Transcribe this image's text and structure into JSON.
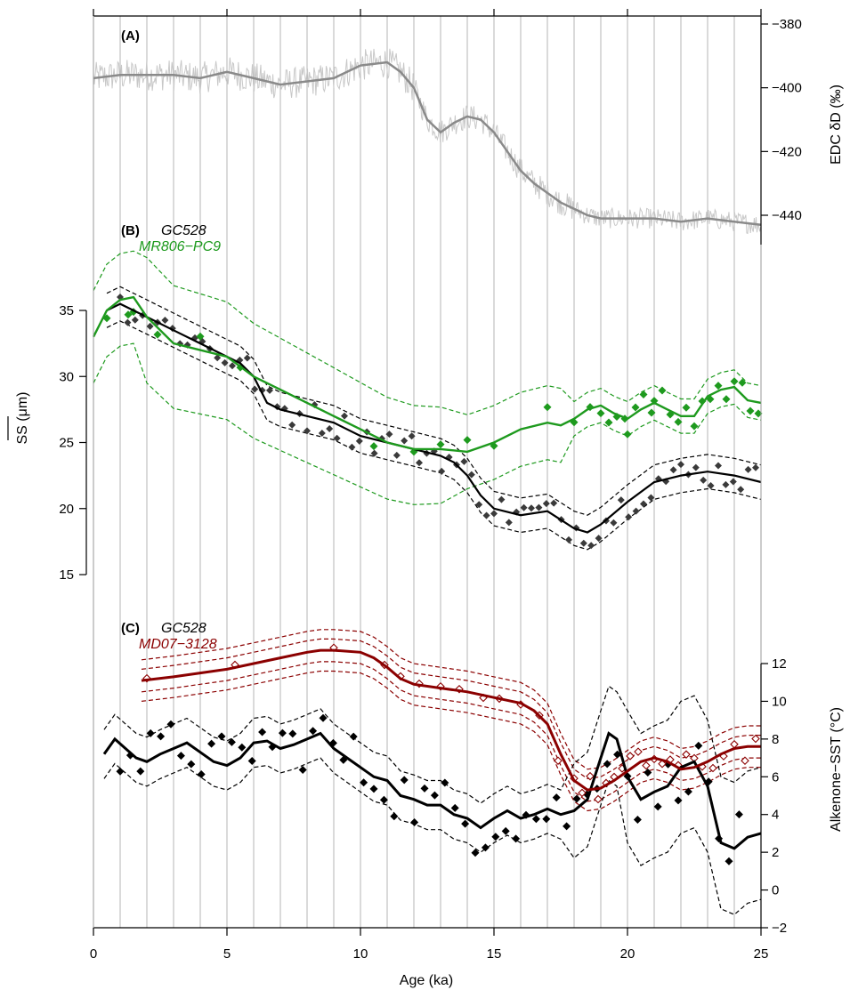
{
  "colors": {
    "panel_a_raw": "#c8c8c8",
    "panel_a_smooth": "#8a8a8a",
    "gc528": "#000000",
    "gc528_points_b": "#3a3a3a",
    "mr806": "#1e9a1e",
    "md07": "#8b0000",
    "grid": "#b4b4b4"
  },
  "labels": {
    "panel_a": "(A)",
    "panel_b": "(B)",
    "panel_c": "(C)",
    "b_series1": "GC528",
    "b_series2": "MR806−PC9",
    "c_series1": "GC528",
    "c_series2": "MD07−3128",
    "xlabel": "Age (ka)",
    "ylabel_a": "EDC δD (‰)",
    "ylabel_b": "SS (μm)",
    "ylabel_c": "Alkenone−SST (°C)"
  },
  "chart_data": [
    {
      "type": "line",
      "panel": "A",
      "ylabel": "EDC δD (‰)",
      "xlim": [
        0,
        25
      ],
      "ylim": [
        -448,
        -378
      ],
      "yticks": [
        -380,
        -400,
        -420,
        -440
      ],
      "ytick_labels": [
        "−380",
        "−400",
        "−420",
        "−440"
      ],
      "series": [
        {
          "role": "smoothed",
          "x": [
            0,
            1,
            2,
            3,
            4,
            5,
            6,
            7,
            8,
            9,
            10,
            11,
            11.5,
            12,
            12.5,
            13,
            13.5,
            14,
            14.5,
            15,
            15.5,
            16,
            16.5,
            17,
            17.5,
            18,
            18.5,
            19,
            19.5,
            20,
            21,
            22,
            23,
            24,
            25
          ],
          "y": [
            -397,
            -396,
            -396,
            -396,
            -397,
            -395,
            -397,
            -399,
            -398,
            -397,
            -393,
            -392,
            -395,
            -400,
            -410,
            -414,
            -411,
            -409,
            -410,
            -414,
            -420,
            -426,
            -430,
            -433,
            -436,
            -438,
            -440,
            -441,
            -441,
            -441,
            -441,
            -442,
            -441,
            -442,
            -443
          ]
        }
      ]
    },
    {
      "type": "line",
      "panel": "B",
      "ylabel": "SS (μm)",
      "xlim": [
        0,
        25
      ],
      "ylim": [
        14,
        40
      ],
      "yticks": [
        15,
        20,
        25,
        30,
        35
      ],
      "series": [
        {
          "name": "GC528",
          "x": [
            0.5,
            1,
            2,
            3,
            4,
            5,
            5.5,
            6,
            6.5,
            7,
            8,
            9,
            10,
            11,
            12,
            13,
            13.5,
            14,
            14.5,
            15,
            16,
            17,
            18,
            18.5,
            19,
            20,
            21,
            22,
            23,
            24,
            25
          ],
          "y": [
            35,
            35.5,
            34.5,
            33.5,
            32.5,
            31.5,
            31,
            30,
            28,
            27.5,
            27,
            26.5,
            25.5,
            25,
            24.5,
            24,
            23.5,
            22.5,
            21,
            20,
            19.5,
            19.8,
            18.5,
            18.2,
            18.8,
            20.5,
            22,
            22.5,
            22.8,
            22.5,
            22
          ]
        },
        {
          "name": "MR806−PC9",
          "x": [
            0,
            0.5,
            1,
            1.5,
            2,
            3,
            4,
            5,
            6,
            7,
            8,
            9,
            10,
            11,
            12,
            13,
            14,
            15,
            16,
            17,
            17.5,
            18,
            18.5,
            19,
            19.5,
            20,
            20.5,
            21,
            21.5,
            22,
            22.5,
            23,
            23.5,
            24,
            24.5,
            25
          ],
          "y": [
            33,
            35,
            35.8,
            36,
            34.5,
            32.5,
            32,
            31.5,
            30,
            29,
            28,
            27,
            26,
            25,
            24.5,
            24.5,
            24.3,
            25,
            26,
            26.5,
            26.3,
            26.8,
            27.5,
            27.8,
            27.2,
            26.8,
            27.5,
            28,
            27.5,
            27,
            27,
            28.5,
            29,
            29.2,
            28.2,
            28
          ]
        }
      ]
    },
    {
      "type": "line",
      "panel": "C",
      "ylabel": "Alkenone−SST (°C)",
      "xlim": [
        0,
        25
      ],
      "ylim": [
        -2,
        13.2
      ],
      "yticks": [
        -2,
        0,
        2,
        4,
        6,
        8,
        10,
        12
      ],
      "ytick_labels": [
        "−2",
        "0",
        "2",
        "4",
        "6",
        "8",
        "10",
        "12"
      ],
      "series": [
        {
          "name": "GC528",
          "x": [
            0.4,
            0.8,
            1.2,
            1.6,
            2,
            2.5,
            3,
            3.5,
            4,
            4.5,
            5,
            5.5,
            6,
            6.5,
            7,
            7.5,
            8,
            8.5,
            9,
            9.5,
            10,
            10.5,
            11,
            11.5,
            12,
            12.5,
            13,
            13.5,
            14,
            14.5,
            15,
            15.5,
            16,
            16.5,
            17,
            17.5,
            18,
            18.5,
            19,
            19.3,
            19.6,
            20,
            20.5,
            21,
            21.5,
            22,
            22.5,
            23,
            23.5,
            24,
            24.5,
            25
          ],
          "y": [
            7.2,
            8,
            7.5,
            7,
            6.8,
            7.2,
            7.5,
            7.8,
            7.3,
            6.8,
            6.6,
            7,
            7.8,
            7.9,
            7.5,
            7.7,
            8,
            8.3,
            7.5,
            7,
            6.5,
            6,
            5.8,
            5,
            4.8,
            4.5,
            4.5,
            4,
            3.8,
            3.3,
            3.8,
            4.2,
            3.8,
            4,
            4.3,
            4,
            4.2,
            4.8,
            7,
            8.3,
            8,
            6,
            4.8,
            5.2,
            5.5,
            6.5,
            6.8,
            5.5,
            2.5,
            2.2,
            2.8,
            3
          ]
        },
        {
          "name": "MD07−3128",
          "x": [
            1.8,
            3,
            4,
            5,
            6,
            7,
            8,
            8.5,
            9,
            10,
            10.5,
            11,
            11.5,
            12,
            13,
            14,
            15,
            16,
            16.5,
            17,
            17.5,
            18,
            18.5,
            19,
            19.5,
            20,
            20.5,
            21,
            21.5,
            22,
            22.5,
            23,
            23.5,
            24,
            24.5,
            25
          ],
          "y": [
            11.1,
            11.3,
            11.5,
            11.7,
            12,
            12.3,
            12.6,
            12.7,
            12.7,
            12.6,
            12.3,
            11.8,
            11.2,
            10.9,
            10.7,
            10.5,
            10.2,
            9.9,
            9.5,
            8.8,
            7.2,
            5.8,
            5.3,
            5.4,
            5.8,
            6.3,
            6.8,
            7,
            6.8,
            6.4,
            6.5,
            6.8,
            7.2,
            7.5,
            7.6,
            7.6
          ]
        }
      ]
    }
  ]
}
